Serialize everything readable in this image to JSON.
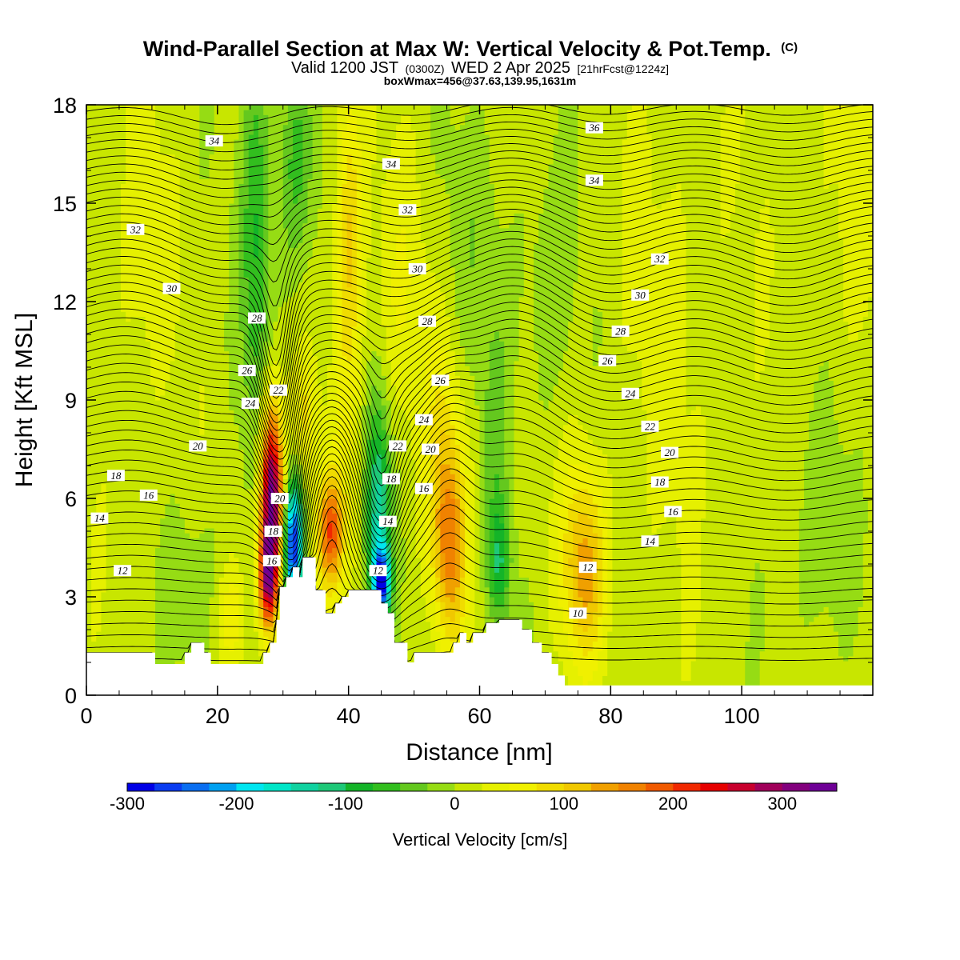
{
  "chart_data": {
    "type": "heatmap",
    "title": {
      "main": "Wind-Parallel Section at Max W: Vertical Velocity & Pot.Temp.",
      "main_suffix": "(C)",
      "line2_a": "Valid 1200 JST",
      "line2_b": "(0300Z)",
      "line2_c": "WED 2 Apr 2025",
      "line2_d": "[21hrFcst@1224z]",
      "line3": "boxWmax=456@37.63,139.95,1631m"
    },
    "xlabel": "Distance [nm]",
    "ylabel": "Height [Kft MSL]",
    "xlim": [
      0,
      120
    ],
    "ylim": [
      0,
      18
    ],
    "x_ticks": [
      "0",
      "20",
      "40",
      "60",
      "80",
      "100"
    ],
    "x_tick_values": [
      0,
      20,
      40,
      60,
      80,
      100
    ],
    "y_ticks": [
      "0",
      "3",
      "6",
      "9",
      "12",
      "15",
      "18"
    ],
    "y_tick_values": [
      0,
      3,
      6,
      9,
      12,
      15,
      18
    ],
    "colorbar": {
      "label": "Vertical Velocity [cm/s]",
      "range": [
        -300,
        350
      ],
      "step": 25,
      "tick_labels": [
        "-300",
        "-200",
        "-100",
        "0",
        "100",
        "200",
        "300"
      ],
      "tick_values": [
        -300,
        -200,
        -100,
        0,
        100,
        200,
        300
      ],
      "colors": [
        "#0000e6",
        "#0a3cf0",
        "#0a6ef0",
        "#00a0f0",
        "#00e6f0",
        "#00e6c8",
        "#10d2a0",
        "#1ec878",
        "#14b428",
        "#32be1e",
        "#64c81e",
        "#96dc14",
        "#c8e600",
        "#e6f000",
        "#f0f000",
        "#f0dc00",
        "#f0c800",
        "#f0a000",
        "#f08200",
        "#f05a00",
        "#f02800",
        "#e60000",
        "#c8002d",
        "#a0005a",
        "#82007d",
        "#6e0096"
      ]
    },
    "terrain_profile": [
      [
        0,
        1.3
      ],
      [
        10.5,
        1.3
      ],
      [
        10.5,
        0.95
      ],
      [
        15,
        0.95
      ],
      [
        15,
        1.3
      ],
      [
        16,
        1.3
      ],
      [
        16,
        1.6
      ],
      [
        18,
        1.6
      ],
      [
        18,
        1.3
      ],
      [
        19,
        1.3
      ],
      [
        19,
        0.95
      ],
      [
        27,
        0.95
      ],
      [
        27,
        1.3
      ],
      [
        28,
        1.3
      ],
      [
        28,
        1.6
      ],
      [
        29,
        1.6
      ],
      [
        29,
        2.3
      ],
      [
        29.5,
        2.3
      ],
      [
        29.5,
        3.3
      ],
      [
        30.5,
        3.3
      ],
      [
        30.5,
        3.6
      ],
      [
        31.5,
        3.6
      ],
      [
        31.5,
        3.9
      ],
      [
        32.5,
        3.9
      ],
      [
        32.5,
        3.6
      ],
      [
        33,
        3.6
      ],
      [
        33,
        4.2
      ],
      [
        35,
        4.2
      ],
      [
        35,
        3.2
      ],
      [
        36.5,
        3.2
      ],
      [
        36.5,
        2.5
      ],
      [
        38,
        2.5
      ],
      [
        38,
        2.8
      ],
      [
        39,
        2.8
      ],
      [
        39,
        3.0
      ],
      [
        40,
        3.0
      ],
      [
        40,
        3.2
      ],
      [
        45,
        3.2
      ],
      [
        45,
        2.8
      ],
      [
        46,
        2.8
      ],
      [
        46,
        2.5
      ],
      [
        47,
        2.5
      ],
      [
        47,
        1.6
      ],
      [
        49,
        1.6
      ],
      [
        49,
        1.0
      ],
      [
        50,
        1.0
      ],
      [
        50,
        1.3
      ],
      [
        56,
        1.3
      ],
      [
        56,
        1.6
      ],
      [
        57,
        1.6
      ],
      [
        57,
        1.9
      ],
      [
        58,
        1.9
      ],
      [
        58,
        1.6
      ],
      [
        59,
        1.6
      ],
      [
        59,
        1.9
      ],
      [
        61,
        1.9
      ],
      [
        61,
        2.2
      ],
      [
        63,
        2.2
      ],
      [
        63,
        2.3
      ],
      [
        66.5,
        2.3
      ],
      [
        66.5,
        2.0
      ],
      [
        68,
        2.0
      ],
      [
        68,
        1.6
      ],
      [
        69.5,
        1.6
      ],
      [
        69.5,
        1.3
      ],
      [
        71,
        1.3
      ],
      [
        71,
        0.95
      ],
      [
        72,
        0.95
      ],
      [
        72,
        0.6
      ],
      [
        73,
        0.6
      ],
      [
        73,
        0.3
      ],
      [
        120,
        0.3
      ]
    ],
    "w_features": [
      {
        "x": 28.2,
        "z": 6.0,
        "sx": 1.2,
        "sz": 2.0,
        "value": 340
      },
      {
        "x": 27.6,
        "z": 3.5,
        "sx": 1.0,
        "sz": 1.0,
        "value": 200
      },
      {
        "x": 31.6,
        "z": 4.6,
        "sx": 1.0,
        "sz": 1.4,
        "value": -290
      },
      {
        "x": 37.2,
        "z": 5.0,
        "sx": 1.4,
        "sz": 1.2,
        "value": 170
      },
      {
        "x": 40.0,
        "z": 14.5,
        "sx": 1.3,
        "sz": 3.0,
        "value": 70
      },
      {
        "x": 40.0,
        "z": 10.0,
        "sx": 1.8,
        "sz": 4.5,
        "value": 40
      },
      {
        "x": 33.5,
        "z": 8.5,
        "sx": 1.2,
        "sz": 1.2,
        "value": 60
      },
      {
        "x": 44.5,
        "z": 5.5,
        "sx": 1.4,
        "sz": 2.5,
        "value": -150
      },
      {
        "x": 45.0,
        "z": 3.5,
        "sx": 0.9,
        "sz": 0.7,
        "value": -240
      },
      {
        "x": 26.0,
        "z": 14.0,
        "sx": 1.6,
        "sz": 4.5,
        "value": -90
      },
      {
        "x": 32.0,
        "z": 16.0,
        "sx": 2.0,
        "sz": 2.5,
        "value": -70
      },
      {
        "x": 55.5,
        "z": 4.5,
        "sx": 1.8,
        "sz": 2.0,
        "value": 130
      },
      {
        "x": 54.5,
        "z": 7.5,
        "sx": 2.0,
        "sz": 2.5,
        "value": 60
      },
      {
        "x": 63.0,
        "z": 4.0,
        "sx": 1.2,
        "sz": 1.3,
        "value": -100
      },
      {
        "x": 62.5,
        "z": 8.0,
        "sx": 1.5,
        "sz": 2.5,
        "value": -40
      },
      {
        "x": 76.0,
        "z": 3.5,
        "sx": 2.2,
        "sz": 1.8,
        "value": 100
      },
      {
        "x": 76.0,
        "z": 5.5,
        "sx": 2.5,
        "sz": 2.0,
        "value": 40
      },
      {
        "x": 48.0,
        "z": 12.0,
        "sx": 3.5,
        "sz": 3.0,
        "value": 30
      },
      {
        "x": 60.0,
        "z": 14.0,
        "sx": 4.0,
        "sz": 3.0,
        "value": -25
      },
      {
        "x": 90.0,
        "z": 12.0,
        "sx": 6.0,
        "sz": 5.0,
        "value": 20
      },
      {
        "x": 112.0,
        "z": 5.0,
        "sx": 3.0,
        "sz": 3.0,
        "value": -35
      },
      {
        "x": 115.0,
        "z": 14.0,
        "sx": 4.0,
        "sz": 4.0,
        "value": 20
      },
      {
        "x": 8.0,
        "z": 13.0,
        "sx": 3.0,
        "sz": 4.0,
        "value": 25
      },
      {
        "x": 17.0,
        "z": 3.5,
        "sx": 3.0,
        "sz": 2.0,
        "value": -30
      },
      {
        "x": 22.0,
        "z": 2.5,
        "sx": 1.5,
        "sz": 1.0,
        "value": 50
      },
      {
        "x": 70.0,
        "z": 12.0,
        "sx": 3.0,
        "sz": 3.0,
        "value": -30
      }
    ],
    "theta_contours": {
      "levels": [
        8,
        8.5,
        9,
        9.5,
        10,
        10.5,
        11,
        11.5,
        12,
        12.5,
        13,
        13.5,
        14,
        14.5,
        15,
        15.5,
        16,
        16.5,
        17,
        17.5,
        18,
        18.5,
        19,
        19.5,
        20,
        20.5,
        21,
        21.5,
        22,
        22.5,
        23,
        23.5,
        24,
        24.5,
        25,
        25.5,
        26,
        26.5,
        27,
        27.5,
        28,
        28.5,
        29,
        29.5,
        30,
        30.5,
        31,
        31.5,
        32,
        32.5,
        33,
        33.5,
        34,
        34.5,
        35,
        35.5,
        36,
        36.5,
        37
      ],
      "labels": [
        {
          "text": "34",
          "x": 19.5,
          "z": 16.9
        },
        {
          "text": "32",
          "x": 7.5,
          "z": 14.2
        },
        {
          "text": "30",
          "x": 13.0,
          "z": 12.4
        },
        {
          "text": "28",
          "x": 26.0,
          "z": 11.5
        },
        {
          "text": "26",
          "x": 24.5,
          "z": 9.9
        },
        {
          "text": "24",
          "x": 25.0,
          "z": 8.9
        },
        {
          "text": "22",
          "x": 29.3,
          "z": 9.3
        },
        {
          "text": "20",
          "x": 17.0,
          "z": 7.6
        },
        {
          "text": "18",
          "x": 4.5,
          "z": 6.7
        },
        {
          "text": "16",
          "x": 9.5,
          "z": 6.1
        },
        {
          "text": "14",
          "x": 2.0,
          "z": 5.4
        },
        {
          "text": "12",
          "x": 5.5,
          "z": 3.8
        },
        {
          "text": "20",
          "x": 29.5,
          "z": 6.0
        },
        {
          "text": "18",
          "x": 28.5,
          "z": 5.0
        },
        {
          "text": "16",
          "x": 28.3,
          "z": 4.1
        },
        {
          "text": "34",
          "x": 46.5,
          "z": 16.2
        },
        {
          "text": "32",
          "x": 49.0,
          "z": 14.8
        },
        {
          "text": "30",
          "x": 50.5,
          "z": 13.0
        },
        {
          "text": "28",
          "x": 52.0,
          "z": 11.4
        },
        {
          "text": "26",
          "x": 54.0,
          "z": 9.6
        },
        {
          "text": "24",
          "x": 51.5,
          "z": 8.4
        },
        {
          "text": "22",
          "x": 47.5,
          "z": 7.6
        },
        {
          "text": "20",
          "x": 52.5,
          "z": 7.5
        },
        {
          "text": "18",
          "x": 46.5,
          "z": 6.6
        },
        {
          "text": "16",
          "x": 51.5,
          "z": 6.3
        },
        {
          "text": "14",
          "x": 46.0,
          "z": 5.3
        },
        {
          "text": "12",
          "x": 44.5,
          "z": 3.8
        },
        {
          "text": "36",
          "x": 77.5,
          "z": 17.3
        },
        {
          "text": "34",
          "x": 77.5,
          "z": 15.7
        },
        {
          "text": "32",
          "x": 87.5,
          "z": 13.3
        },
        {
          "text": "30",
          "x": 84.5,
          "z": 12.2
        },
        {
          "text": "28",
          "x": 81.5,
          "z": 11.1
        },
        {
          "text": "26",
          "x": 79.5,
          "z": 10.2
        },
        {
          "text": "24",
          "x": 83.0,
          "z": 9.2
        },
        {
          "text": "22",
          "x": 86.0,
          "z": 8.2
        },
        {
          "text": "20",
          "x": 89.0,
          "z": 7.4
        },
        {
          "text": "18",
          "x": 87.5,
          "z": 6.5
        },
        {
          "text": "16",
          "x": 89.5,
          "z": 5.6
        },
        {
          "text": "14",
          "x": 86.0,
          "z": 4.7
        },
        {
          "text": "12",
          "x": 76.5,
          "z": 3.9
        },
        {
          "text": "10",
          "x": 75.0,
          "z": 2.5
        }
      ]
    }
  }
}
